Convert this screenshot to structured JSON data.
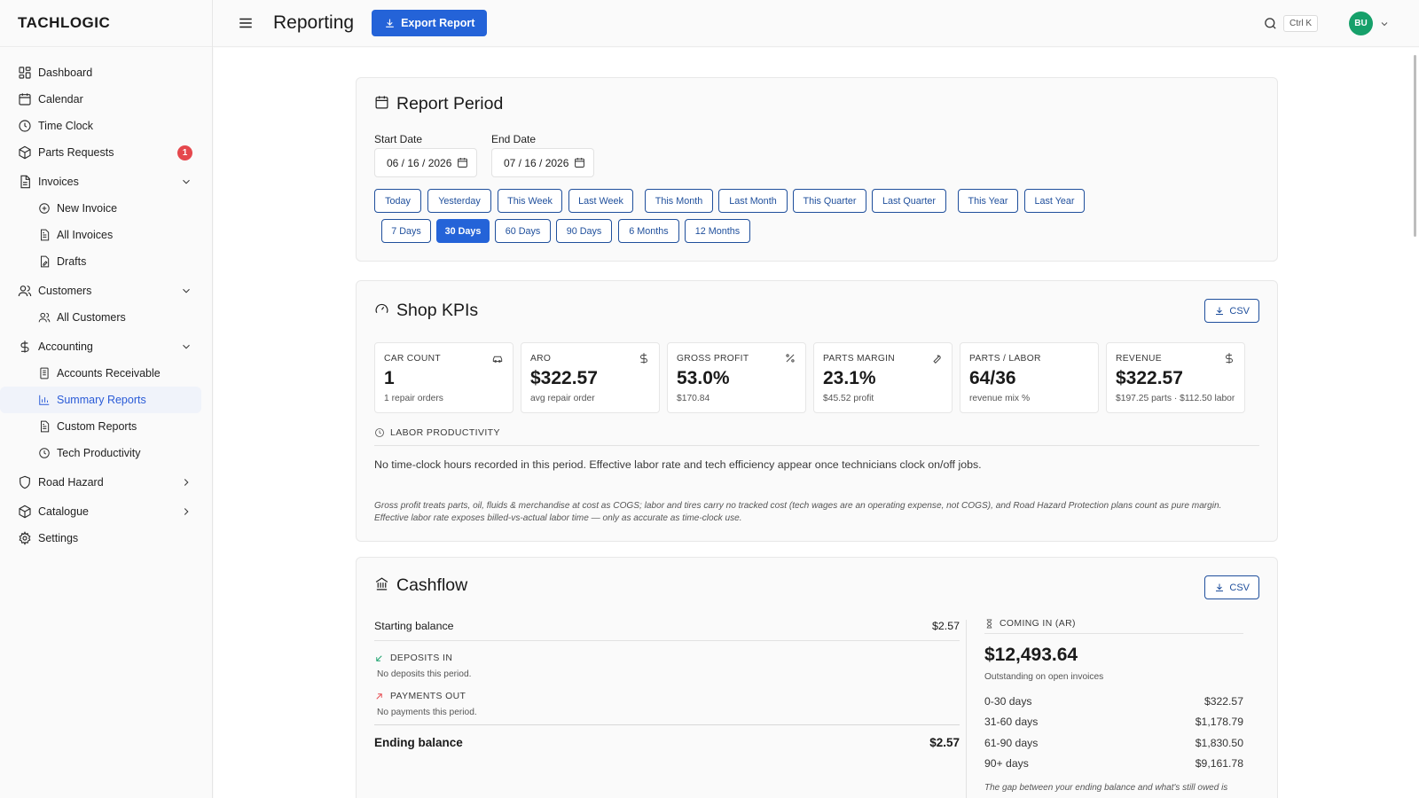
{
  "app": {
    "brand": "TACHLOGIC"
  },
  "sidebar": {
    "dashboard": "Dashboard",
    "calendar": "Calendar",
    "time_clock": "Time Clock",
    "parts_requests": "Parts Requests",
    "parts_badge": "1",
    "invoices": "Invoices",
    "new_invoice": "New Invoice",
    "all_invoices": "All Invoices",
    "drafts": "Drafts",
    "customers": "Customers",
    "all_customers": "All Customers",
    "accounting": "Accounting",
    "accounts_receivable": "Accounts Receivable",
    "summary_reports": "Summary Reports",
    "custom_reports": "Custom Reports",
    "tech_productivity": "Tech Productivity",
    "road_hazard": "Road Hazard",
    "catalogue": "Catalogue",
    "settings": "Settings"
  },
  "header": {
    "title": "Reporting",
    "export_label": "Export Report",
    "search_shortcut": "Ctrl K",
    "avatar_initials": "BU"
  },
  "report_period": {
    "title": "Report Period",
    "start_label": "Start Date",
    "start_value": "06 / 16 / 2026",
    "end_label": "End Date",
    "end_value": "07 / 16 / 2026",
    "presets_row1": [
      "Today",
      "Yesterday",
      "This Week",
      "Last Week",
      "This Month",
      "Last Month",
      "This Quarter",
      "Last Quarter",
      "This Year",
      "Last Year"
    ],
    "presets_row2": [
      "7 Days",
      "30 Days",
      "60 Days",
      "90 Days",
      "6 Months",
      "12 Months"
    ],
    "active_preset": "30 Days"
  },
  "kpis": {
    "title": "Shop KPIs",
    "csv_label": "CSV",
    "tiles": [
      {
        "label": "CAR COUNT",
        "value": "1",
        "sub": "1 repair orders",
        "icon": "car-icon"
      },
      {
        "label": "ARO",
        "value": "$322.57",
        "sub": "avg repair order",
        "icon": "dollar-icon"
      },
      {
        "label": "GROSS PROFIT",
        "value": "53.0%",
        "sub": "$170.84",
        "icon": "percent-icon"
      },
      {
        "label": "PARTS MARGIN",
        "value": "23.1%",
        "sub": "$45.52 profit",
        "icon": "wrench-icon"
      },
      {
        "label": "PARTS / LABOR",
        "value": "64/36",
        "sub": "revenue mix %",
        "icon": ""
      },
      {
        "label": "REVENUE",
        "value": "$322.57",
        "sub": "$197.25 parts · $112.50 labor",
        "icon": "dollar-icon"
      }
    ],
    "labor_heading": "LABOR PRODUCTIVITY",
    "labor_text": "No time-clock hours recorded in this period. Effective labor rate and tech efficiency appear once technicians clock on/off jobs.",
    "footnote": "Gross profit treats parts, oil, fluids & merchandise at cost as COGS; labor and tires carry no tracked cost (tech wages are an operating expense, not COGS), and Road Hazard Protection plans count as pure margin. Effective labor rate exposes billed-vs-actual labor time — only as accurate as time-clock use."
  },
  "cashflow": {
    "title": "Cashflow",
    "csv_label": "CSV",
    "starting_label": "Starting balance",
    "starting_value": "$2.57",
    "deposits_heading": "DEPOSITS IN",
    "deposits_empty": "No deposits this period.",
    "payments_heading": "PAYMENTS OUT",
    "payments_empty": "No payments this period.",
    "ending_label": "Ending balance",
    "ending_value": "$2.57",
    "ar_heading": "COMING IN (AR)",
    "ar_total": "$12,493.64",
    "ar_sub": "Outstanding on open invoices",
    "aging": [
      {
        "label": "0-30 days",
        "value": "$322.57"
      },
      {
        "label": "31-60 days",
        "value": "$1,178.79"
      },
      {
        "label": "61-90 days",
        "value": "$1,830.50"
      },
      {
        "label": "90+ days",
        "value": "$9,161.78"
      }
    ],
    "ar_note": "The gap between your ending balance and what's still owed is"
  },
  "colors": {
    "accent": "#2463d8",
    "outline": "#1f4f9c",
    "badge": "#e5484d",
    "avatar": "#16a06a"
  }
}
